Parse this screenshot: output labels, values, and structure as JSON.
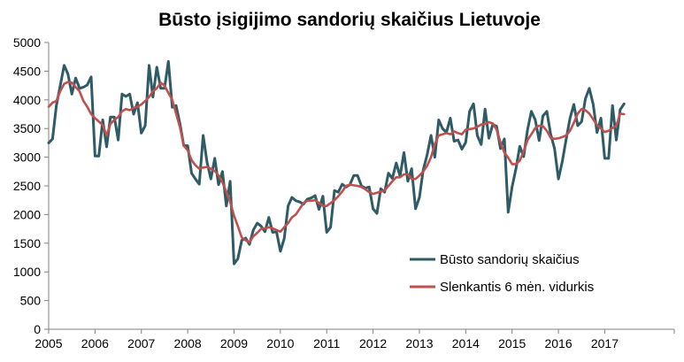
{
  "chart_data": {
    "type": "line",
    "title": "Būsto įsigijimo sandorių skaičius Lietuvoje",
    "xlabel": "",
    "ylabel": "",
    "ylim": [
      0,
      5000
    ],
    "yticks": [
      0,
      500,
      1000,
      1500,
      2000,
      2500,
      3000,
      3500,
      4000,
      4500,
      5000
    ],
    "xticks": [
      "2005",
      "2006",
      "2007",
      "2008",
      "2009",
      "2010",
      "2011",
      "2012",
      "2013",
      "2014",
      "2015",
      "2016",
      "2017"
    ],
    "x_start": "2005-01",
    "x_frequency": "monthly",
    "grid": false,
    "legend_position": "bottom-right",
    "series": [
      {
        "name": "Būsto sandorių skaičius",
        "color": "#2e5b66",
        "values": [
          3250,
          3320,
          3900,
          4250,
          4600,
          4450,
          4100,
          4380,
          4200,
          4220,
          4260,
          4400,
          3020,
          3020,
          3650,
          3180,
          3700,
          3700,
          3300,
          4100,
          4060,
          4100,
          3750,
          3950,
          3420,
          3550,
          4600,
          4050,
          4570,
          4200,
          4200,
          4670,
          3870,
          3900,
          3580,
          3200,
          3200,
          2720,
          2620,
          2530,
          3380,
          2920,
          2620,
          2980,
          2520,
          2750,
          2150,
          2580,
          1140,
          1230,
          1550,
          1590,
          1480,
          1730,
          1850,
          1800,
          1700,
          1950,
          1690,
          1700,
          1360,
          1580,
          2150,
          2300,
          2240,
          2220,
          2180,
          2270,
          2290,
          2330,
          2090,
          2320,
          1690,
          1780,
          2420,
          2390,
          2530,
          2480,
          2520,
          2680,
          2680,
          2500,
          2460,
          2480,
          2100,
          2020,
          2450,
          2390,
          2720,
          2630,
          2900,
          2670,
          3080,
          2580,
          2800,
          2100,
          2300,
          2780,
          3040,
          3380,
          3000,
          3650,
          3500,
          3430,
          3680,
          3280,
          3300,
          3140,
          3260,
          3800,
          3930,
          3380,
          3220,
          3840,
          3330,
          3570,
          3540,
          3150,
          3320,
          2040,
          2480,
          2800,
          3190,
          3010,
          3480,
          3800,
          3650,
          3290,
          3720,
          3800,
          3400,
          3150,
          2620,
          2920,
          3310,
          3680,
          3920,
          3550,
          3620,
          4020,
          4200,
          3920,
          3430,
          3680,
          2980,
          2980,
          3900,
          3300,
          3830,
          3930
        ]
      },
      {
        "name": "Slenkantis 6 mėn. vidurkis",
        "color": "#c0504d",
        "values": [
          3880,
          3950,
          3980,
          4150,
          4280,
          4310,
          4300,
          4220,
          4150,
          3980,
          3880,
          3750,
          3680,
          3620,
          3560,
          3380,
          3580,
          3650,
          3700,
          3800,
          3840,
          3820,
          3860,
          3880,
          3920,
          3980,
          4050,
          4150,
          4200,
          4300,
          4250,
          4120,
          4000,
          3760,
          3520,
          3200,
          3120,
          2950,
          2860,
          2800,
          2820,
          2830,
          2800,
          2760,
          2680,
          2560,
          2400,
          2220,
          1980,
          1800,
          1600,
          1550,
          1520,
          1620,
          1680,
          1750,
          1760,
          1780,
          1760,
          1730,
          1700,
          1780,
          1850,
          1950,
          2000,
          2100,
          2200,
          2240,
          2240,
          2250,
          2200,
          2150,
          2150,
          2200,
          2250,
          2320,
          2400,
          2500,
          2520,
          2510,
          2500,
          2480,
          2440,
          2390,
          2360,
          2380,
          2400,
          2420,
          2500,
          2580,
          2650,
          2650,
          2700,
          2700,
          2620,
          2620,
          2680,
          2750,
          2850,
          3000,
          3230,
          3380,
          3400,
          3420,
          3400,
          3450,
          3420,
          3400,
          3480,
          3490,
          3500,
          3530,
          3570,
          3580,
          3610,
          3590,
          3480,
          3260,
          3080,
          2990,
          2880,
          2880,
          2940,
          3100,
          3300,
          3400,
          3510,
          3550,
          3540,
          3460,
          3340,
          3320,
          3330,
          3350,
          3380,
          3460,
          3600,
          3760,
          3840,
          3820,
          3760,
          3660,
          3560,
          3500,
          3440,
          3460,
          3510,
          3550,
          3760,
          3750
        ]
      }
    ]
  }
}
